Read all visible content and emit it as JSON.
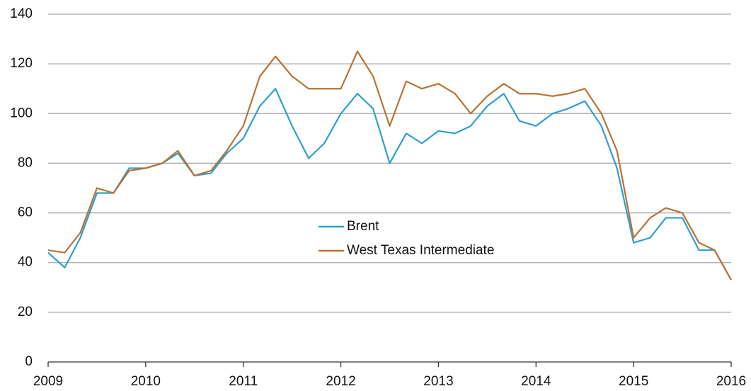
{
  "chart_data": {
    "type": "line",
    "x": [
      2009,
      2009.17,
      2009.33,
      2009.5,
      2009.67,
      2009.83,
      2010,
      2010.17,
      2010.33,
      2010.5,
      2010.67,
      2010.83,
      2011,
      2011.17,
      2011.33,
      2011.5,
      2011.67,
      2011.83,
      2012,
      2012.17,
      2012.33,
      2012.5,
      2012.67,
      2012.83,
      2013,
      2013.17,
      2013.33,
      2013.5,
      2013.67,
      2013.83,
      2014,
      2014.17,
      2014.33,
      2014.5,
      2014.67,
      2014.83,
      2015,
      2015.17,
      2015.33,
      2015.5,
      2015.67,
      2015.83,
      2016
    ],
    "series": [
      {
        "name": "Brent",
        "color": "#2e9fd0",
        "values": [
          44,
          38,
          50,
          68,
          68,
          78,
          78,
          80,
          84,
          75,
          76,
          84,
          90,
          103,
          110,
          95,
          82,
          88,
          100,
          108,
          102,
          80,
          92,
          88,
          93,
          92,
          95,
          103,
          108,
          97,
          95,
          100,
          102,
          105,
          95,
          78,
          48,
          50,
          58,
          58,
          45,
          45,
          33
        ]
      },
      {
        "name": "West Texas Intermediate",
        "color": "#b87333",
        "values": [
          45,
          44,
          52,
          70,
          68,
          77,
          78,
          80,
          85,
          75,
          77,
          85,
          95,
          115,
          123,
          115,
          110,
          110,
          110,
          125,
          115,
          95,
          113,
          110,
          112,
          108,
          100,
          107,
          112,
          108,
          108,
          107,
          108,
          110,
          100,
          85,
          50,
          58,
          62,
          60,
          48,
          45,
          33
        ]
      }
    ],
    "xlim": [
      2009,
      2016
    ],
    "xticks": [
      2009,
      2010,
      2011,
      2012,
      2013,
      2014,
      2015,
      2016
    ],
    "ylim": [
      0,
      140
    ],
    "yticks": [
      0,
      20,
      40,
      60,
      80,
      100,
      120,
      140
    ],
    "grid": true
  }
}
